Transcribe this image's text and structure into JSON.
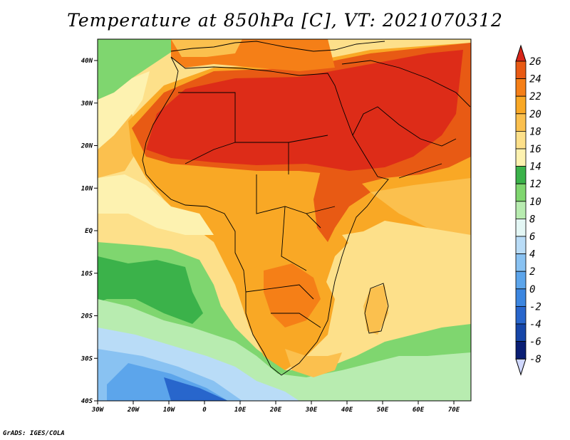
{
  "title": "Temperature at 850hPa [C], VT: 2021070312",
  "credit": "GrADS: IGES/COLA",
  "map": {
    "lon_ticks": [
      "30W",
      "20W",
      "10W",
      "0",
      "10E",
      "20E",
      "30E",
      "40E",
      "50E",
      "60E",
      "70E"
    ],
    "lat_ticks": [
      "40N",
      "30N",
      "20N",
      "10N",
      "EQ",
      "10S",
      "20S",
      "30S",
      "40S"
    ]
  },
  "colorbar": {
    "labels": [
      "26",
      "24",
      "22",
      "20",
      "18",
      "16",
      "14",
      "12",
      "10",
      "8",
      "6",
      "4",
      "2",
      "0",
      "-2",
      "-4",
      "-6",
      "-8"
    ],
    "colors": [
      "#e8301e",
      "#e85a14",
      "#f57f17",
      "#f9a825",
      "#fbc04e",
      "#fde08a",
      "#fdf2b0",
      "#3bb24a",
      "#7fd66f",
      "#b8ecb0",
      "#e4f7f5",
      "#b9dcf7",
      "#89c2f2",
      "#5ca5eb",
      "#3c86e0",
      "#2866cc",
      "#1646a8",
      "#0a1e74"
    ],
    "overflow_colors": {
      "high": "#d8261a",
      "low": "#d0d8ff"
    }
  },
  "fill_colors": {
    "very_hot": "#dd2c18",
    "hot": "#e85a14",
    "warm": "#f57f17",
    "mild": "#f9a825",
    "tepid": "#fbc04e",
    "pale": "#fde08a",
    "cream": "#fdf2b0",
    "green": "#3bb24a",
    "light_green": "#7fd66f",
    "pale_green": "#b8ecb0",
    "pale_blue": "#b9dcf7",
    "blue": "#5ca5eb",
    "deep_blue": "#2866cc"
  }
}
